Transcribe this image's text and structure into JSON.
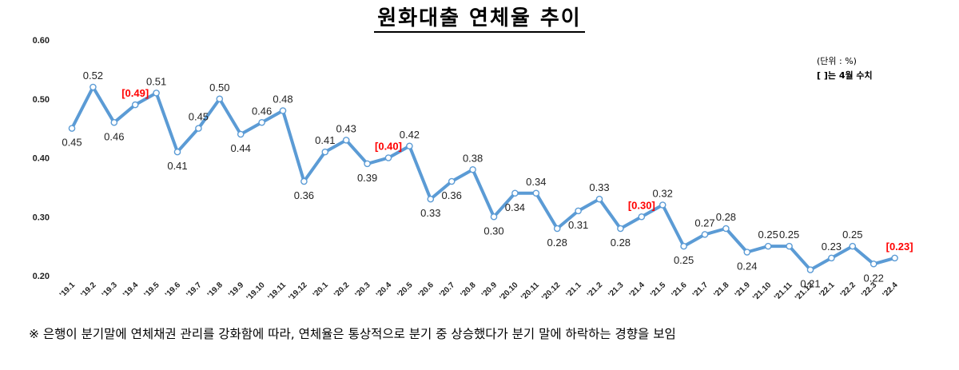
{
  "header": {
    "title": "원화대출 연체율 추이",
    "unit_note": "(단위 : %)",
    "bracket_note": "[    ]는 4월 수치"
  },
  "footnote": "※ 은행이 분기말에 연체채권 관리를 강화함에 따라, 연체율은 통상적으로 분기 중 상승했다가 분기 말에 하락하는 경향을 보임",
  "chart_data": {
    "type": "line",
    "title": "원화대출 연체율 추이",
    "xlabel": "",
    "ylabel": "",
    "ylim": [
      0.2,
      0.6
    ],
    "yticks": [
      "0.20",
      "0.30",
      "0.40",
      "0.50",
      "0.60"
    ],
    "grid": false,
    "line_color": "#5b9bd5",
    "highlight_color": "#ff0000",
    "categories": [
      "'19.1",
      "'19.2",
      "'19.3",
      "'19.4",
      "'19.5",
      "'19.6",
      "'19.7",
      "'19.8",
      "'19.9",
      "'19.10",
      "'19.11",
      "'19.12",
      "'20.1",
      "'20.2",
      "'20.3",
      "'20.4",
      "'20.5",
      "'20.6",
      "'20.7",
      "'20.8",
      "'20.9",
      "'20.10",
      "'20.11",
      "'20.12",
      "'21.1",
      "'21.2",
      "'21.3",
      "'21.4",
      "'21.5",
      "'21.6",
      "'21.7",
      "'21.8",
      "'21.9",
      "'21.10",
      "'21.11",
      "'21.12",
      "'22.1",
      "'22.2",
      "'22.3",
      "'22.4"
    ],
    "values": [
      0.45,
      0.52,
      0.46,
      0.49,
      0.51,
      0.41,
      0.45,
      0.5,
      0.44,
      0.46,
      0.48,
      0.36,
      0.41,
      0.43,
      0.39,
      0.4,
      0.42,
      0.33,
      0.36,
      0.38,
      0.3,
      0.34,
      0.34,
      0.28,
      0.31,
      0.33,
      0.28,
      0.3,
      0.32,
      0.25,
      0.27,
      0.28,
      0.24,
      0.25,
      0.25,
      0.21,
      0.23,
      0.25,
      0.22,
      0.23
    ],
    "data_labels": [
      "0.45",
      "0.52",
      "0.46",
      "[0.49]",
      "0.51",
      "0.41",
      "0.45",
      "0.50",
      "0.44",
      "0.46",
      "0.48",
      "0.36",
      "0.41",
      "0.43",
      "0.39",
      "[0.40]",
      "0.42",
      "0.33",
      "0.36",
      "0.38",
      "0.30",
      "0.34",
      "0.34",
      "0.28",
      "0.31",
      "0.33",
      "0.28",
      "[0.30]",
      "0.32",
      "0.25",
      "0.27",
      "0.28",
      "0.24",
      "0.25",
      "0.25",
      "0.21",
      "0.23",
      "0.25",
      "0.22",
      "[0.23]"
    ],
    "label_position": [
      "below",
      "above",
      "below",
      "above",
      "above",
      "below",
      "above",
      "above",
      "below",
      "above",
      "above",
      "below",
      "above",
      "above",
      "below",
      "above",
      "above",
      "below",
      "below",
      "above",
      "below",
      "below",
      "above",
      "below",
      "below",
      "above",
      "below",
      "above",
      "above",
      "below",
      "above",
      "above",
      "below",
      "above",
      "above",
      "below",
      "above",
      "above",
      "below",
      "above"
    ],
    "highlighted": [
      3,
      15,
      27,
      39
    ]
  }
}
